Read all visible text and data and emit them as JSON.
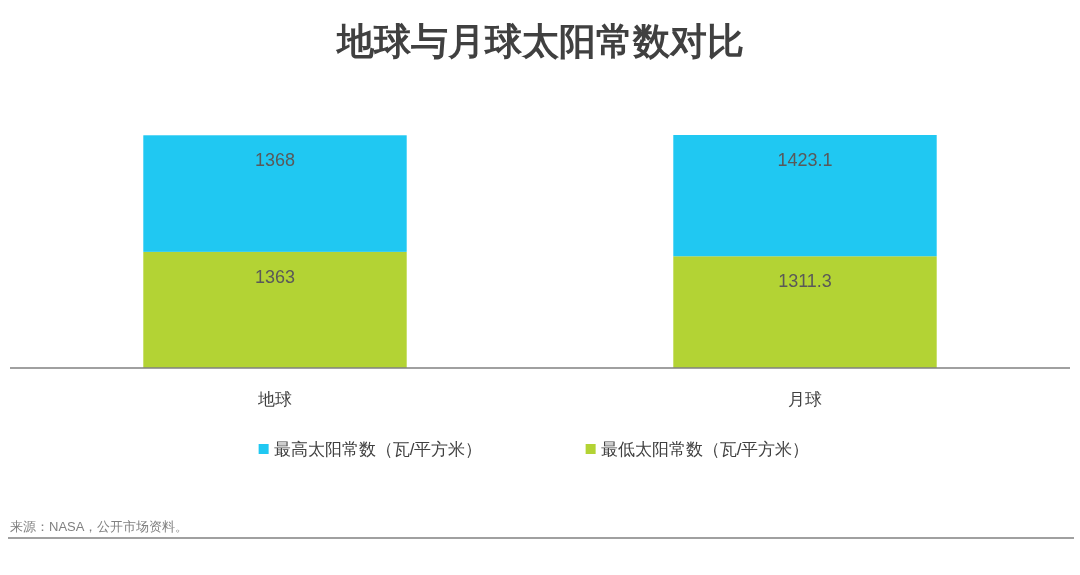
{
  "chart_data": {
    "type": "bar",
    "title": "地球与月球太阳常数对比",
    "categories": [
      "地球",
      "月球"
    ],
    "stacked": true,
    "series": [
      {
        "name": "最低太阳常数（瓦/平方米）",
        "color": "#b3d334",
        "values": [
          1363,
          1311.3
        ]
      },
      {
        "name": "最高太阳常数（瓦/平方米）",
        "color": "#20c8f2",
        "values": [
          1368,
          1423.1
        ]
      }
    ],
    "data_labels": true,
    "tick_labels": "x",
    "legend": "bottom",
    "annotations": [
      "来源：NASA，公开市场资料。"
    ]
  }
}
